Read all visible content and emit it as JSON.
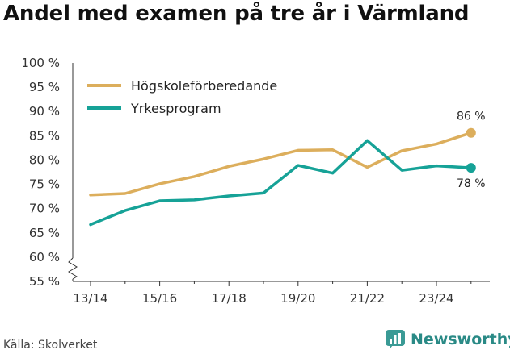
{
  "title": "Andel med examen på tre år i Värmland",
  "source": "Källa: Skolverket",
  "brand": {
    "name": "Newsworthy",
    "icon": "newsworthy-logo-icon",
    "color": "#3a9a95"
  },
  "chart_data": {
    "type": "line",
    "title": "Andel med examen på tre år i Värmland",
    "xlabel": "",
    "ylabel": "",
    "y_axis_break": true,
    "ylim": [
      55,
      100
    ],
    "yticks": [
      55,
      60,
      65,
      70,
      75,
      80,
      85,
      90,
      95,
      100
    ],
    "ytick_labels": [
      "55 %",
      "60 %",
      "65 %",
      "70 %",
      "75 %",
      "80 %",
      "85 %",
      "90 %",
      "95 %",
      "100 %"
    ],
    "x": [
      "13/14",
      "14/15",
      "15/16",
      "16/17",
      "17/18",
      "18/19",
      "19/20",
      "20/21",
      "21/22",
      "22/23",
      "23/24",
      "24/25"
    ],
    "xtick_labels": [
      "13/14",
      "15/16",
      "17/18",
      "19/20",
      "21/22",
      "23/24"
    ],
    "legend_position": "top-left",
    "grid": false,
    "series": [
      {
        "name": "Högskoleförberedande",
        "color": "#dcae5c",
        "values": [
          72.8,
          73.1,
          75.1,
          76.6,
          78.7,
          80.2,
          82.0,
          82.1,
          78.5,
          81.9,
          83.3,
          85.6
        ],
        "end_label": "86 %"
      },
      {
        "name": "Yrkesprogram",
        "color": "#16a297",
        "values": [
          66.7,
          69.6,
          71.6,
          71.8,
          72.6,
          73.2,
          78.9,
          77.3,
          84.0,
          77.9,
          78.8,
          78.4
        ],
        "end_label": "78 %"
      }
    ]
  }
}
